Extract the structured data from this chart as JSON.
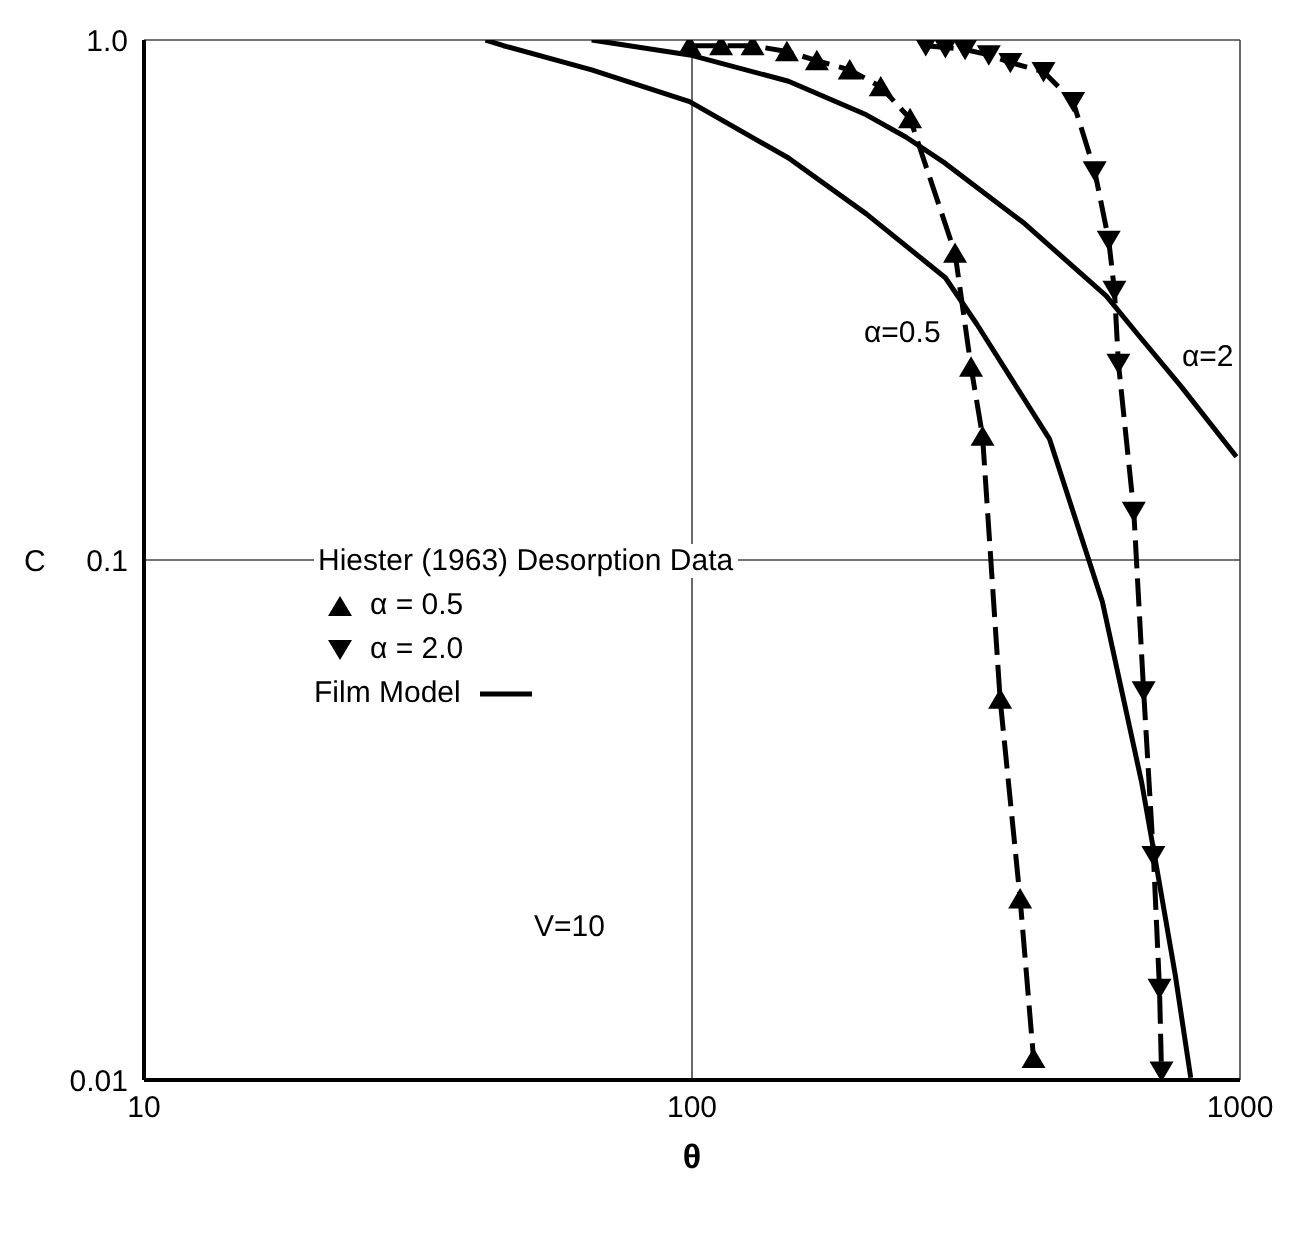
{
  "chart_data": {
    "type": "line",
    "xlabel": "θ",
    "ylabel": "C",
    "legend_title": "Hiester (1963) Desorption Data",
    "log": "xy",
    "grid": true,
    "legend": "left",
    "xlim": [
      10,
      1000
    ],
    "xticks": [
      10,
      100,
      1000
    ],
    "ylim": [
      0.01,
      1
    ],
    "yticks": [
      {
        "value": 0.01,
        "label": "0.01"
      },
      {
        "value": 0.1,
        "label": "0.1"
      },
      {
        "value": 1,
        "label": "1.0"
      }
    ],
    "series": [
      {
        "name": "α = 0.5",
        "type": "line",
        "color": "#000000",
        "marker": "triangle",
        "line_style": "dashed",
        "x": [
          99,
          113,
          129,
          149,
          169,
          194,
          221,
          250,
          302,
          323,
          339,
          365,
          397,
          420
        ],
        "values": [
          0.975,
          0.975,
          0.975,
          0.95,
          0.913,
          0.876,
          0.813,
          0.706,
          0.389,
          0.235,
          0.173,
          0.054,
          0.0223,
          0.011
        ]
      },
      {
        "name": "α = 2.0",
        "type": "line",
        "color": "#000000",
        "marker": "triangle-down",
        "line_style": "dashed",
        "x": [
          267,
          290,
          315,
          348,
          381,
          438,
          496,
          543,
          576,
          590,
          600,
          640,
          667,
          695,
          713,
          719
        ],
        "values": [
          0.975,
          0.967,
          0.959,
          0.936,
          0.905,
          0.869,
          0.761,
          0.56,
          0.412,
          0.33,
          0.239,
          0.124,
          0.056,
          0.027,
          0.015,
          0.0104
        ]
      },
      {
        "name": "Film Model",
        "type": "line",
        "color": "#000000",
        "marker": "none",
        "line_style": "solid",
        "x": [
          42,
          45.3,
          65.6,
          99,
          150,
          208,
          290,
          331,
          449,
          561,
          662,
          707,
          762,
          813
        ],
        "values": [
          1.0,
          0.975,
          0.876,
          0.761,
          0.593,
          0.463,
          0.349,
          0.284,
          0.171,
          0.083,
          0.0372,
          0.0251,
          0.0159,
          0.0101
        ]
      },
      {
        "type": "line",
        "color": "#000000",
        "marker": "none",
        "line_style": "solid",
        "x": [
          65.6,
          99,
          150,
          208,
          246,
          290,
          404,
          570,
          650,
          780,
          985
        ],
        "values": [
          1.0,
          0.936,
          0.833,
          0.718,
          0.65,
          0.579,
          0.444,
          0.322,
          0.272,
          0.216,
          0.158
        ]
      }
    ],
    "annotations": [
      "α=0.5",
      "α=2",
      "V=10"
    ]
  }
}
